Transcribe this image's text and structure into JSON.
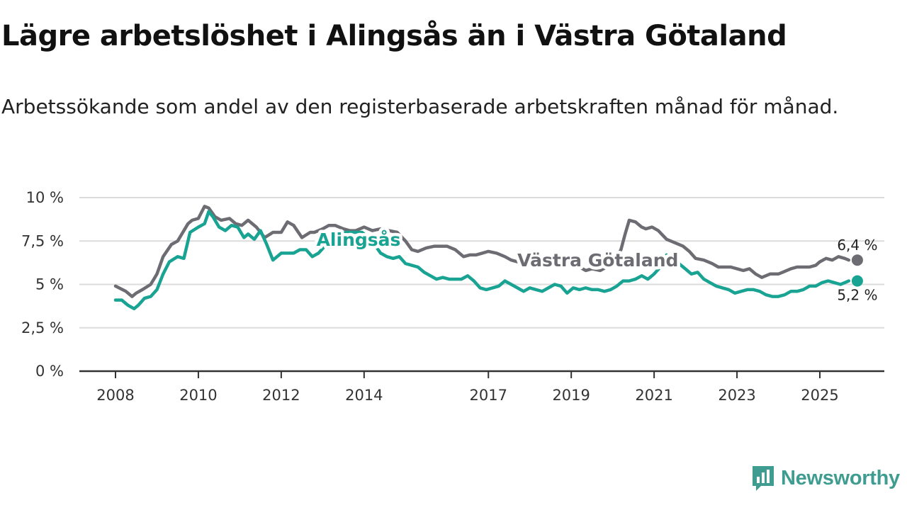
{
  "title": "Lägre arbetslöshet i Alingsås än i Västra Götaland",
  "subtitle": "Arbetssökande som andel av den registerbaserade arbetskraften månad för månad.",
  "brand": {
    "name": "Newsworthy",
    "icon": "newsworthy-logo-icon",
    "color": "#3f9c90"
  },
  "chart_data": {
    "type": "line",
    "title": "Lägre arbetslöshet i Alingsås än i Västra Götaland",
    "xlabel": "",
    "ylabel": "",
    "unit": "%",
    "ylim": [
      0,
      10
    ],
    "xlim": [
      2008.0,
      2025.8
    ],
    "grid": true,
    "y_ticks": [
      {
        "value": 0,
        "label": "0 %"
      },
      {
        "value": 2.5,
        "label": "2,5 %"
      },
      {
        "value": 5,
        "label": "5 %"
      },
      {
        "value": 7.5,
        "label": "7,5 %"
      },
      {
        "value": 10,
        "label": "10 %"
      }
    ],
    "x_ticks": [
      {
        "value": 2008,
        "label": "2008"
      },
      {
        "value": 2010,
        "label": "2010"
      },
      {
        "value": 2012,
        "label": "2012"
      },
      {
        "value": 2014,
        "label": "2014"
      },
      {
        "value": 2017,
        "label": "2017"
      },
      {
        "value": 2019,
        "label": "2019"
      },
      {
        "value": 2021,
        "label": "2021"
      },
      {
        "value": 2023,
        "label": "2023"
      },
      {
        "value": 2025,
        "label": "2025"
      }
    ],
    "series": [
      {
        "name": "Västra Götaland",
        "color": "#6d6c72",
        "end_label": "6,4 %",
        "x": [
          2008.0,
          2008.25,
          2008.4,
          2008.5,
          2008.65,
          2008.85,
          2009.0,
          2009.15,
          2009.35,
          2009.5,
          2009.75,
          2009.85,
          2010.0,
          2010.15,
          2010.25,
          2010.4,
          2010.55,
          2010.75,
          2010.9,
          2011.05,
          2011.2,
          2011.4,
          2011.6,
          2011.8,
          2012.0,
          2012.15,
          2012.3,
          2012.5,
          2012.7,
          2012.8,
          2013.0,
          2013.15,
          2013.3,
          2013.5,
          2013.65,
          2013.8,
          2014.0,
          2014.2,
          2014.4,
          2014.6,
          2014.8,
          2015.0,
          2015.15,
          2015.3,
          2015.5,
          2015.7,
          2015.85,
          2016.0,
          2016.2,
          2016.4,
          2016.55,
          2016.7,
          2016.85,
          2017.0,
          2017.2,
          2017.4,
          2017.55,
          2017.7,
          2017.85,
          2018.0,
          2018.2,
          2018.4,
          2018.55,
          2018.7,
          2018.9,
          2019.0,
          2019.2,
          2019.35,
          2019.5,
          2019.7,
          2019.85,
          2020.0,
          2020.1,
          2020.2,
          2020.3,
          2020.4,
          2020.55,
          2020.7,
          2020.8,
          2020.95,
          2021.1,
          2021.3,
          2021.5,
          2021.7,
          2021.85,
          2022.0,
          2022.2,
          2022.4,
          2022.55,
          2022.7,
          2022.85,
          2023.0,
          2023.15,
          2023.3,
          2023.45,
          2023.6,
          2023.8,
          2024.0,
          2024.1,
          2024.3,
          2024.45,
          2024.6,
          2024.75,
          2024.9,
          2025.0,
          2025.15,
          2025.3,
          2025.45,
          2025.6,
          2025.7
        ],
        "values": [
          4.9,
          4.6,
          4.3,
          4.5,
          4.7,
          5.0,
          5.6,
          6.6,
          7.3,
          7.5,
          8.5,
          8.7,
          8.8,
          9.5,
          9.4,
          8.9,
          8.7,
          8.8,
          8.5,
          8.4,
          8.7,
          8.3,
          7.7,
          8.0,
          8.0,
          8.6,
          8.4,
          7.7,
          8.0,
          8.0,
          8.2,
          8.4,
          8.4,
          8.2,
          8.1,
          8.1,
          8.3,
          8.1,
          8.2,
          8.1,
          8.0,
          7.5,
          7.0,
          6.9,
          7.1,
          7.2,
          7.2,
          7.2,
          7.0,
          6.6,
          6.7,
          6.7,
          6.8,
          6.9,
          6.8,
          6.6,
          6.4,
          6.3,
          6.5,
          6.4,
          6.3,
          6.2,
          6.1,
          6.1,
          6.2,
          6.1,
          6.0,
          5.8,
          5.9,
          5.8,
          6.0,
          6.2,
          6.6,
          7.0,
          7.9,
          8.7,
          8.6,
          8.3,
          8.2,
          8.3,
          8.1,
          7.6,
          7.4,
          7.2,
          6.9,
          6.5,
          6.4,
          6.2,
          6.0,
          6.0,
          6.0,
          5.9,
          5.8,
          5.9,
          5.6,
          5.4,
          5.6,
          5.6,
          5.7,
          5.9,
          6.0,
          6.0,
          6.0,
          6.1,
          6.3,
          6.5,
          6.4,
          6.6,
          6.5,
          6.4
        ]
      },
      {
        "name": "Alingsås",
        "color": "#18a393",
        "end_label": "5,2 %",
        "x": [
          2008.0,
          2008.15,
          2008.3,
          2008.45,
          2008.55,
          2008.7,
          2008.85,
          2009.0,
          2009.15,
          2009.3,
          2009.5,
          2009.65,
          2009.8,
          2010.0,
          2010.15,
          2010.25,
          2010.35,
          2010.5,
          2010.65,
          2010.8,
          2010.95,
          2011.1,
          2011.2,
          2011.35,
          2011.5,
          2011.65,
          2011.8,
          2012.0,
          2012.15,
          2012.3,
          2012.45,
          2012.6,
          2012.75,
          2012.9,
          2013.05,
          2013.2,
          2013.35,
          2013.55,
          2013.75,
          2013.95,
          2014.1,
          2014.25,
          2014.4,
          2014.55,
          2014.7,
          2014.85,
          2015.0,
          2015.15,
          2015.3,
          2015.45,
          2015.6,
          2015.75,
          2015.9,
          2016.05,
          2016.2,
          2016.35,
          2016.5,
          2016.65,
          2016.8,
          2016.95,
          2017.1,
          2017.25,
          2017.4,
          2017.55,
          2017.7,
          2017.85,
          2018.0,
          2018.15,
          2018.3,
          2018.45,
          2018.6,
          2018.75,
          2018.9,
          2019.05,
          2019.2,
          2019.35,
          2019.5,
          2019.65,
          2019.8,
          2019.95,
          2020.1,
          2020.25,
          2020.4,
          2020.55,
          2020.7,
          2020.85,
          2021.0,
          2021.15,
          2021.3,
          2021.45,
          2021.6,
          2021.75,
          2021.9,
          2022.05,
          2022.2,
          2022.35,
          2022.5,
          2022.65,
          2022.8,
          2022.95,
          2023.1,
          2023.25,
          2023.4,
          2023.55,
          2023.7,
          2023.85,
          2024.0,
          2024.15,
          2024.3,
          2024.45,
          2024.6,
          2024.75,
          2024.9,
          2025.05,
          2025.2,
          2025.35,
          2025.5,
          2025.6,
          2025.7
        ],
        "values": [
          4.1,
          4.1,
          3.8,
          3.6,
          3.8,
          4.2,
          4.3,
          4.7,
          5.6,
          6.3,
          6.6,
          6.5,
          8.0,
          8.3,
          8.5,
          9.2,
          8.9,
          8.3,
          8.1,
          8.4,
          8.3,
          7.7,
          7.9,
          7.6,
          8.1,
          7.3,
          6.4,
          6.8,
          6.8,
          6.8,
          7.0,
          7.0,
          6.6,
          6.8,
          7.2,
          7.4,
          7.8,
          8.0,
          8.0,
          8.0,
          7.7,
          7.3,
          6.8,
          6.6,
          6.5,
          6.6,
          6.2,
          6.1,
          6.0,
          5.7,
          5.5,
          5.3,
          5.4,
          5.3,
          5.3,
          5.3,
          5.5,
          5.2,
          4.8,
          4.7,
          4.8,
          4.9,
          5.2,
          5.0,
          4.8,
          4.6,
          4.8,
          4.7,
          4.6,
          4.8,
          5.0,
          4.9,
          4.5,
          4.8,
          4.7,
          4.8,
          4.7,
          4.7,
          4.6,
          4.7,
          4.9,
          5.2,
          5.2,
          5.3,
          5.5,
          5.3,
          5.6,
          6.0,
          6.7,
          6.5,
          6.2,
          5.9,
          5.6,
          5.7,
          5.3,
          5.1,
          4.9,
          4.8,
          4.7,
          4.5,
          4.6,
          4.7,
          4.7,
          4.6,
          4.4,
          4.3,
          4.3,
          4.4,
          4.6,
          4.6,
          4.7,
          4.9,
          4.9,
          5.1,
          5.2,
          5.1,
          5.0,
          5.1,
          5.2
        ]
      }
    ]
  }
}
